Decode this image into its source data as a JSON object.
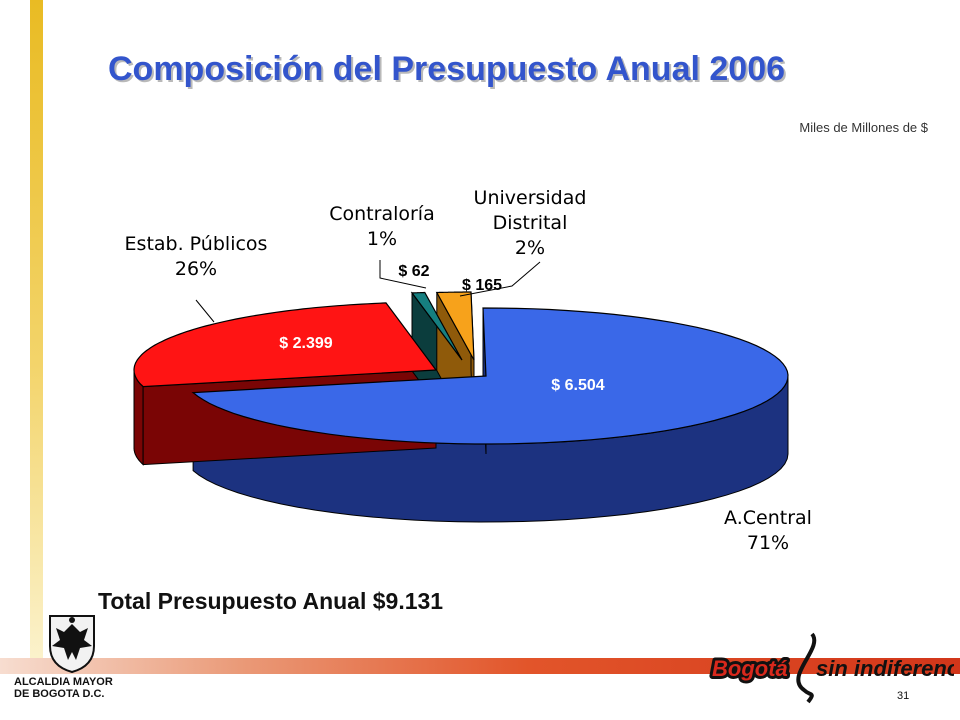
{
  "slide": {
    "title": "Composición del Presupuesto Anual 2006",
    "units": "Miles de Millones de $",
    "total_text": "Total Presupuesto Anual $9.131",
    "footer": {
      "org_name": "ALCALDIA MAYOR\nDE BOGOTA D.C.",
      "brand_left": "Bogotá",
      "brand_right": "sin indiferencia",
      "page_number": "31"
    }
  },
  "chart_data": {
    "type": "pie",
    "style": "3d-exploded",
    "title": "Composición del Presupuesto Anual 2006",
    "units": "Miles de Millones de $",
    "slices": [
      {
        "name": "A.Central",
        "value": 6504,
        "value_label": "$ 6.504",
        "percent_label": "71%",
        "color": "#3a68e8",
        "side_color": "#1c3280",
        "text_color": "#ffffff"
      },
      {
        "name": "Estab. Públicos",
        "value": 2399,
        "value_label": "$ 2.399",
        "percent_label": "26%",
        "color": "#ff1414",
        "side_color": "#7a0505",
        "text_color": "#ffffff"
      },
      {
        "name": "Contraloría",
        "value": 62,
        "value_label": "$ 62",
        "percent_label": "1%",
        "color": "#167f80",
        "side_color": "#0b3d3d",
        "text_color": "#000000"
      },
      {
        "name": "Universidad\nDistrital",
        "value": 165,
        "value_label": "$ 165",
        "percent_label": "2%",
        "color": "#f7a21b",
        "side_color": "#8f5a0a",
        "text_color": "#000000"
      }
    ]
  }
}
